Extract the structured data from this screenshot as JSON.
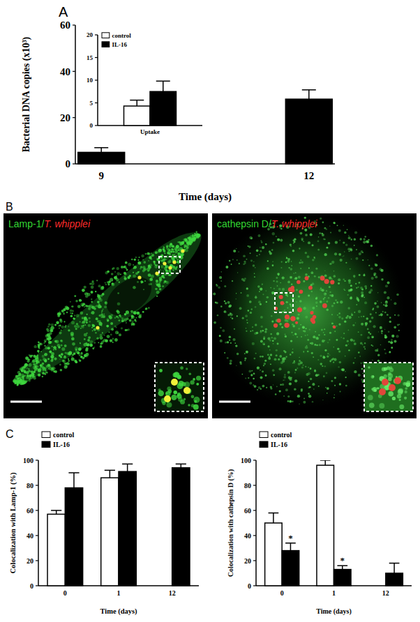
{
  "chart_data": [
    {
      "type": "bar",
      "panel": "A",
      "x_label": "Time (days)",
      "y_label": "Bacterial DNA copies (x10³)",
      "categories": [
        "9",
        "12"
      ],
      "series": [
        {
          "color": "#000000",
          "values": [
            5,
            28
          ],
          "errors": [
            2,
            4
          ]
        }
      ],
      "ylim": [
        0,
        60
      ],
      "yticks": [
        0,
        20,
        40,
        60
      ]
    },
    {
      "type": "bar",
      "categories": [
        "Uptake"
      ],
      "series": [
        {
          "name": "control",
          "color": "#ffffff",
          "values": [
            4.3
          ],
          "errors": [
            1.3
          ]
        },
        {
          "name": "IL-16",
          "color": "#000000",
          "values": [
            7.5
          ],
          "errors": [
            2.3
          ]
        }
      ],
      "ylim": [
        0,
        20
      ],
      "yticks": [
        0,
        5,
        10,
        15,
        20
      ],
      "legend": "top-left"
    },
    {
      "type": "bar",
      "panel": "C",
      "x_label": "Time (days)",
      "y_label": "Colocalization with Lamp-1 (%)",
      "categories": [
        "0",
        "1",
        "12"
      ],
      "series": [
        {
          "name": "control",
          "color": "#ffffff",
          "values": [
            57,
            86,
            null
          ],
          "errors": [
            3,
            6,
            null
          ]
        },
        {
          "name": "IL-16",
          "color": "#000000",
          "values": [
            78,
            91,
            94
          ],
          "errors": [
            12,
            6,
            3
          ]
        }
      ],
      "ylim": [
        0,
        100
      ],
      "yticks": [
        0,
        20,
        40,
        60,
        80,
        100
      ],
      "legend": "top-left"
    },
    {
      "type": "bar",
      "x_label": "Time (days)",
      "y_label": "Colocalization with cathepsin D (%)",
      "categories": [
        "0",
        "1",
        "12"
      ],
      "series": [
        {
          "name": "control",
          "color": "#ffffff",
          "values": [
            50,
            96,
            null
          ],
          "errors": [
            8,
            4,
            null
          ]
        },
        {
          "name": "IL-16",
          "color": "#000000",
          "values": [
            28,
            13,
            10
          ],
          "errors": [
            6,
            3,
            8
          ],
          "significance": [
            "*",
            "*",
            null
          ]
        }
      ],
      "ylim": [
        0,
        100
      ],
      "yticks": [
        0,
        20,
        40,
        60,
        80,
        100
      ],
      "legend": "top-left"
    }
  ],
  "micrographs": {
    "panel": "B",
    "images": [
      {
        "labels": [
          {
            "text": "Lamp-1/",
            "color": "#33d633"
          },
          {
            "text": "T. whipplei",
            "color": "#ff2b2b"
          }
        ]
      },
      {
        "labels": [
          {
            "text": "cathepsin D/",
            "color": "#33d633"
          },
          {
            "text": "T. whipplei",
            "color": "#ff2b2b"
          }
        ]
      }
    ]
  }
}
